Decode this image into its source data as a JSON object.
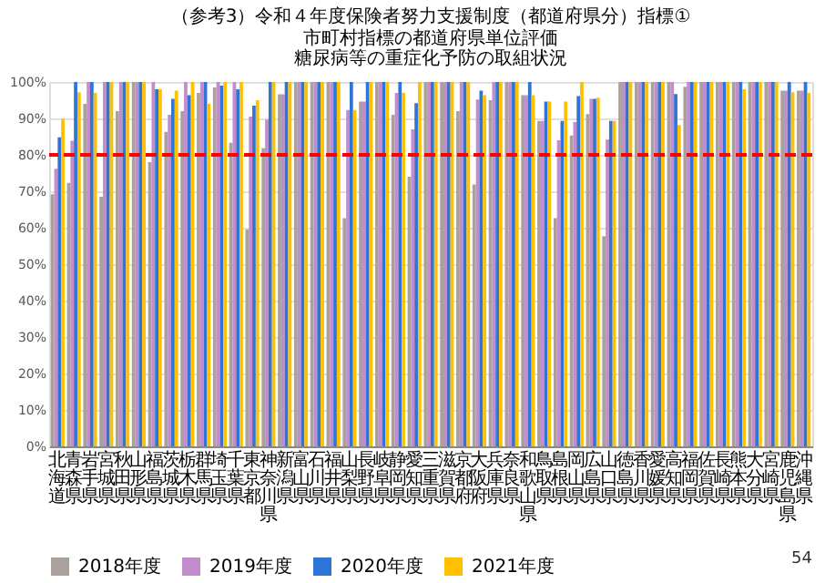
{
  "chart_data": {
    "type": "bar",
    "title": "（参考3）令和４年度保険者努力支援制度（都道府県分）指標①　市町村指標の都道府県単位評価",
    "subtitle": "糖尿病等の重症化予防の取組状況",
    "categories": [
      "北海道",
      "青森県",
      "岩手県",
      "宮城県",
      "秋田県",
      "山形県",
      "福島県",
      "茨城県",
      "栃木県",
      "群馬県",
      "埼玉県",
      "千葉県",
      "東京都",
      "神奈川県",
      "新潟県",
      "富山県",
      "石川県",
      "福井県",
      "山梨県",
      "長野県",
      "岐阜県",
      "静岡県",
      "愛知県",
      "三重県",
      "滋賀県",
      "京都府",
      "大阪府",
      "兵庫県",
      "奈良県",
      "和歌山県",
      "鳥取県",
      "島根県",
      "岡山県",
      "広島県",
      "山口県",
      "徳島県",
      "香川県",
      "愛媛県",
      "高知県",
      "福岡県",
      "佐賀県",
      "長崎県",
      "熊本県",
      "大分県",
      "宮崎県",
      "鹿児島県",
      "沖縄県"
    ],
    "series": [
      {
        "name": "2018年度",
        "color": "#aaa09c",
        "values": [
          69.2,
          72.3,
          94,
          68.5,
          92,
          100,
          78,
          86.3,
          92,
          97,
          98.5,
          83.3,
          59.5,
          81.8,
          96.6,
          100,
          100,
          100,
          62.6,
          94.6,
          100,
          91,
          74,
          100,
          100,
          92,
          71.9,
          95,
          100,
          96.4,
          89.3,
          62.6,
          85.3,
          91.2,
          57.7,
          100,
          100,
          100,
          100,
          98.7,
          100,
          100,
          100,
          100,
          100,
          97.6,
          97.6
        ]
      },
      {
        "name": "2019年度",
        "color": "#c38ccc",
        "values": [
          76.2,
          83.9,
          100,
          100,
          100,
          100,
          100,
          91,
          100,
          100,
          100,
          100,
          90.5,
          89.7,
          96.6,
          100,
          100,
          100,
          92.3,
          94.6,
          100,
          97,
          87,
          100,
          100,
          100,
          95.2,
          100,
          100,
          96.4,
          89.3,
          84,
          89,
          95.4,
          84.2,
          100,
          100,
          100,
          100,
          100,
          100,
          100,
          100,
          100,
          100,
          97.6,
          97.6
        ]
      },
      {
        "name": "2020年度",
        "color": "#2f75d8",
        "values": [
          84.8,
          100,
          100,
          100,
          100,
          100,
          98,
          95.4,
          96.4,
          100,
          99,
          98,
          93.5,
          100,
          100,
          100,
          100,
          100,
          100,
          100,
          100,
          100,
          94.2,
          100,
          100,
          100,
          97.6,
          100,
          100,
          100,
          94.6,
          89.3,
          96.1,
          95.4,
          89.3,
          100,
          100,
          100,
          96.7,
          100,
          100,
          100,
          100,
          100,
          100,
          100,
          100
        ]
      },
      {
        "name": "2021年度",
        "color": "#ffc000",
        "values": [
          89.9,
          97.2,
          97,
          100,
          100,
          100,
          98,
          97.6,
          100,
          94,
          100,
          100,
          95,
          100,
          100,
          100,
          100,
          100,
          92.3,
          100,
          100,
          97,
          100,
          100,
          100,
          100,
          96.4,
          100,
          100,
          96.4,
          94.6,
          94.6,
          100,
          95.7,
          89.3,
          100,
          100,
          100,
          88.2,
          100,
          100,
          100,
          98,
          100,
          100,
          97.2,
          97
        ]
      }
    ],
    "ylim": [
      0,
      100
    ],
    "yticks": [
      {
        "value": 0,
        "label": "0%"
      },
      {
        "value": 10,
        "label": "10%"
      },
      {
        "value": 20,
        "label": "20%"
      },
      {
        "value": 30,
        "label": "30%"
      },
      {
        "value": 40,
        "label": "40%"
      },
      {
        "value": 50,
        "label": "50%"
      },
      {
        "value": 60,
        "label": "60%"
      },
      {
        "value": 70,
        "label": "70%"
      },
      {
        "value": 80,
        "label": "80%"
      },
      {
        "value": 90,
        "label": "90%"
      },
      {
        "value": 100,
        "label": "100%"
      }
    ],
    "grid": "y",
    "legend": "bottom",
    "ref_lines": [
      {
        "axis": "y",
        "value": 80,
        "color": "#ff0000",
        "line_style": "dashed"
      }
    ],
    "annotations": [
      "54"
    ]
  }
}
